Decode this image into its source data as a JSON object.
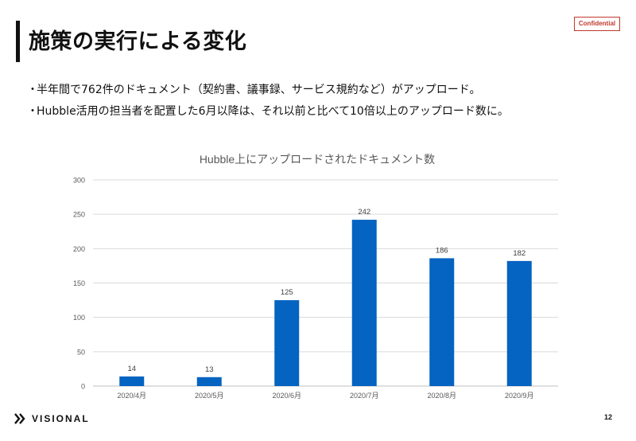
{
  "slide": {
    "title": "施策の実行による変化",
    "confidential_label": "Confidential",
    "bullets": [
      "半年間で762件のドキュメント（契約書、議事録、サービス規約など）がアップロード。",
      "Hubble活用の担当者を配置した6月以降は、それ以前と比べて10倍以上のアップロード数に。"
    ],
    "bullet_marker": "・",
    "logo_text": "VISIONAL",
    "page_number": "12"
  },
  "colors": {
    "bar": "#0563c1",
    "grid": "#d9d9d9",
    "axis_text": "#595959",
    "confidential": "#c0392b"
  },
  "chart_data": {
    "type": "bar",
    "title": "Hubble上にアップロードされたドキュメント数",
    "categories": [
      "2020/4月",
      "2020/5月",
      "2020/6月",
      "2020/7月",
      "2020/8月",
      "2020/9月"
    ],
    "values": [
      14,
      13,
      125,
      242,
      186,
      182
    ],
    "ylim": [
      0,
      300
    ],
    "yticks": [
      0,
      50,
      100,
      150,
      200,
      250,
      300
    ],
    "xlabel": "",
    "ylabel": "",
    "grid": true,
    "data_labels": true
  }
}
